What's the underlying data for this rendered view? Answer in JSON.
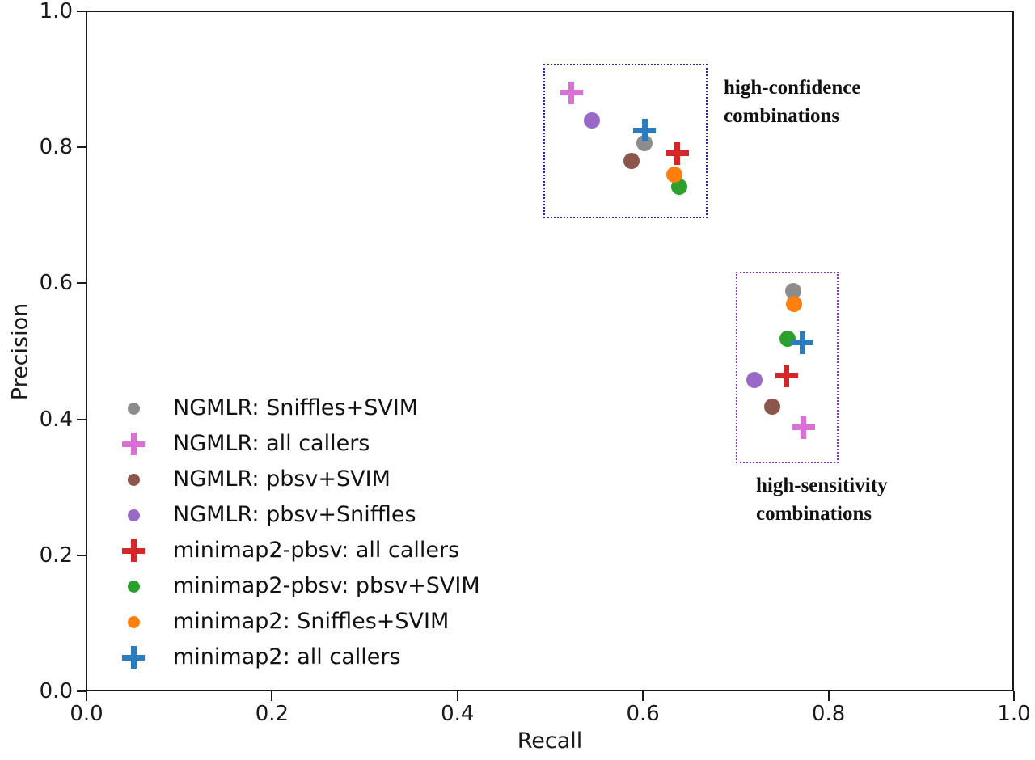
{
  "chart_data": {
    "type": "scatter",
    "title": "",
    "xlabel": "Recall",
    "ylabel": "Precision",
    "xlim": [
      0.0,
      1.0
    ],
    "ylim": [
      0.0,
      1.0
    ],
    "grid": false,
    "legend_position": "lower left inside plot",
    "x_tick_labels": [
      "0.0",
      "0.2",
      "0.4",
      "0.6",
      "0.8",
      "1.0"
    ],
    "y_tick_labels": [
      "0.0",
      "0.2",
      "0.4",
      "0.6",
      "0.8",
      "1.0"
    ],
    "series": [
      {
        "name": "NGMLR: Sniffles+SVIM",
        "marker": "circle",
        "color": "#8c8c8c",
        "points": [
          [
            0.602,
            0.806
          ],
          [
            0.762,
            0.589
          ]
        ]
      },
      {
        "name": "NGMLR: all callers",
        "marker": "plus",
        "color": "#da70d6",
        "points": [
          [
            0.523,
            0.88
          ],
          [
            0.773,
            0.388
          ]
        ]
      },
      {
        "name": "NGMLR: pbsv+SVIM",
        "marker": "circle",
        "color": "#8c564b",
        "points": [
          [
            0.588,
            0.78
          ],
          [
            0.739,
            0.419
          ]
        ]
      },
      {
        "name": "NGMLR: pbsv+Sniffles",
        "marker": "circle",
        "color": "#9969c8",
        "points": [
          [
            0.545,
            0.839
          ],
          [
            0.72,
            0.458
          ]
        ]
      },
      {
        "name": "minimap2-pbsv: all callers",
        "marker": "plus",
        "color": "#d62728",
        "points": [
          [
            0.637,
            0.791
          ],
          [
            0.755,
            0.464
          ]
        ]
      },
      {
        "name": "minimap2-pbsv: pbsv+SVIM",
        "marker": "circle",
        "color": "#2ca02c",
        "points": [
          [
            0.639,
            0.742
          ],
          [
            0.756,
            0.518
          ]
        ]
      },
      {
        "name": "minimap2: Sniffles+SVIM",
        "marker": "circle",
        "color": "#ff7f0e",
        "points": [
          [
            0.634,
            0.76
          ],
          [
            0.763,
            0.57
          ]
        ]
      },
      {
        "name": "minimap2: all callers",
        "marker": "plus",
        "color": "#2b7bbf",
        "points": [
          [
            0.602,
            0.825
          ],
          [
            0.772,
            0.513
          ]
        ]
      }
    ],
    "boxes": [
      {
        "label": "high-confidence combinations",
        "style": "dotted",
        "color": "#2222cc",
        "x0": 0.493,
        "x1": 0.67,
        "y0": 0.696,
        "y1": 0.923
      },
      {
        "label": "high-sensitivity combinations",
        "style": "dotted",
        "color": "#8a2be2",
        "x0": 0.7,
        "x1": 0.811,
        "y0": 0.335,
        "y1": 0.617
      }
    ]
  },
  "legend": {
    "items": [
      {
        "label": "NGMLR: Sniffles+SVIM",
        "marker": "circle",
        "color": "#8c8c8c"
      },
      {
        "label": "NGMLR: all callers",
        "marker": "plus",
        "color": "#da70d6"
      },
      {
        "label": "NGMLR: pbsv+SVIM",
        "marker": "circle",
        "color": "#8c564b"
      },
      {
        "label": "NGMLR: pbsv+Sniffles",
        "marker": "circle",
        "color": "#9969c8"
      },
      {
        "label": "minimap2-pbsv: all callers",
        "marker": "plus",
        "color": "#d62728"
      },
      {
        "label": "minimap2-pbsv: pbsv+SVIM",
        "marker": "circle",
        "color": "#2ca02c"
      },
      {
        "label": "minimap2: Sniffles+SVIM",
        "marker": "circle",
        "color": "#ff7f0e"
      },
      {
        "label": "minimap2: all callers",
        "marker": "plus",
        "color": "#2b7bbf"
      }
    ]
  },
  "annotations": {
    "high_confidence": {
      "line1": "high-confidence",
      "line2": "combinations"
    },
    "high_sensitivity": {
      "line1": "high-sensitivity",
      "line2": "combinations"
    }
  }
}
